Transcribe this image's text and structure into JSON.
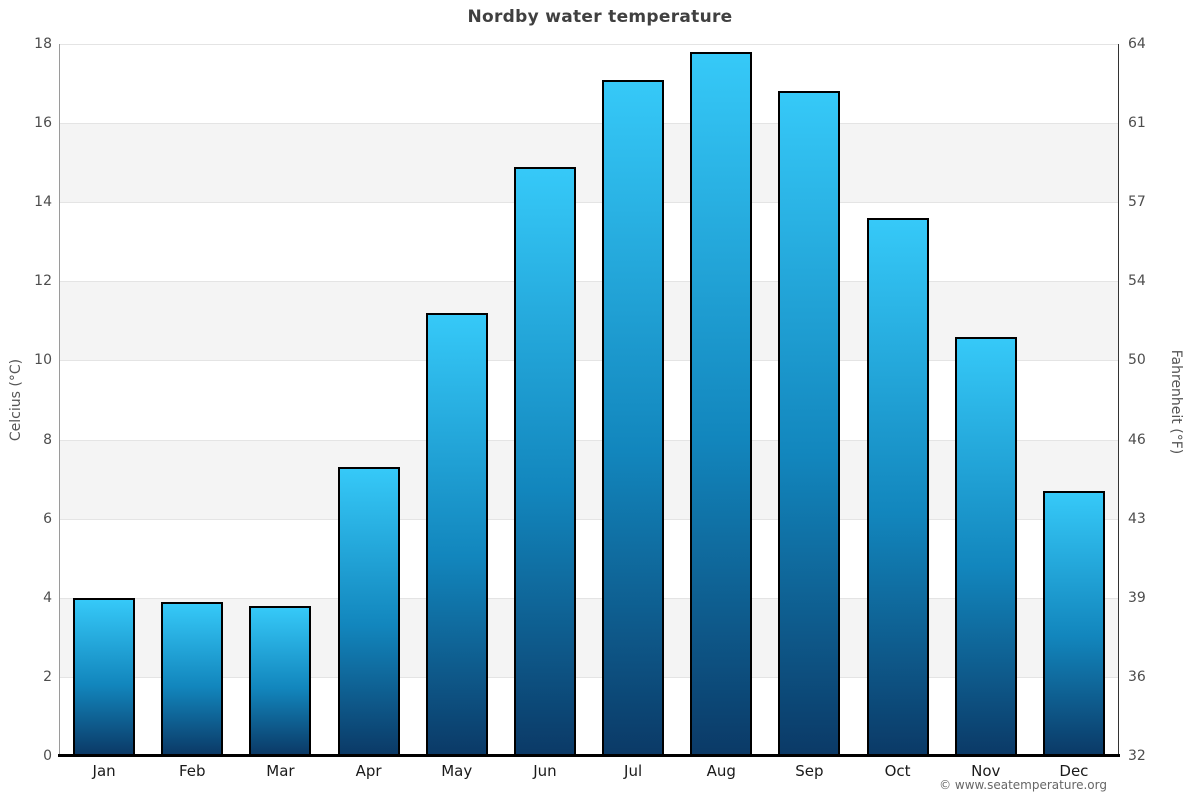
{
  "page": {
    "footer_credit": "© www.seatemperature.org"
  },
  "chart_data": {
    "type": "bar",
    "title": "Nordby water temperature",
    "categories": [
      "Jan",
      "Feb",
      "Mar",
      "Apr",
      "May",
      "Jun",
      "Jul",
      "Aug",
      "Sep",
      "Oct",
      "Nov",
      "Dec"
    ],
    "values": [
      4.0,
      3.9,
      3.8,
      7.3,
      11.2,
      14.9,
      17.1,
      17.8,
      16.8,
      13.6,
      10.6,
      6.7
    ],
    "ylabel_left": "Celcius (°C)",
    "ylabel_right": "Fahrenheit (°F)",
    "yticks_celsius": [
      0,
      2,
      4,
      6,
      8,
      10,
      12,
      14,
      16,
      18
    ],
    "yticks_fahrenheit": [
      "32",
      "36",
      "39",
      "43",
      "46",
      "50",
      "54",
      "57",
      "61",
      "64"
    ],
    "ylim": [
      0,
      18
    ],
    "legend": "none",
    "grid": "horizontal gridlines every 2°C with alternating shaded bands (2-4, 6-8, 10-12, 14-16)",
    "colors": {
      "bar_gradient_top": "#36c9f8",
      "bar_gradient_bottom": "#0b3a67",
      "bar_border": "#000000",
      "band_fill": "#f4f4f4",
      "gridline": "#e4e4e4",
      "title_text": "#404040",
      "tick_text": "#4d4d4d",
      "month_text": "#1a1a1a",
      "footer_text": "#666666"
    }
  }
}
